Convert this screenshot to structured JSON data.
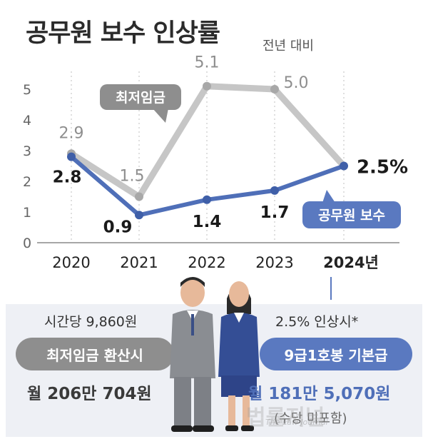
{
  "title": "공무원 보수 인상률",
  "subtitle": "전년 대비",
  "chart_data": {
    "type": "line",
    "x": [
      "2020",
      "2021",
      "2022",
      "2023",
      "2024"
    ],
    "x_tick_labels": [
      "2020",
      "2021",
      "2022",
      "2023",
      "2024년"
    ],
    "ylim": [
      0,
      5
    ],
    "y_ticks": [
      "0",
      "1",
      "2",
      "3",
      "4",
      "5"
    ],
    "series": [
      {
        "name": "최저임금",
        "values": [
          2.9,
          1.5,
          5.1,
          5.0,
          null
        ],
        "labels": [
          "2.9",
          "1.5",
          "5.1",
          "5.0",
          ""
        ],
        "color": "#c6c6c6",
        "label_color": "#8e8e8e"
      },
      {
        "name": "공무원 보수",
        "values": [
          2.8,
          0.9,
          1.4,
          1.7,
          2.5
        ],
        "labels": [
          "2.8",
          "0.9",
          "1.4",
          "1.7",
          "2.5%"
        ],
        "color": "#4f6fb8",
        "label_color": "#1a1a1a"
      }
    ],
    "grid": "vertical-dotted"
  },
  "panel": {
    "left_top": "시간당 9,860원",
    "left_pill": "최저임금 환산시",
    "left_prefix": "월",
    "left_value": "206만 704원",
    "right_top": "2.5% 인상시*",
    "right_pill": "9급1호봉 기본급",
    "right_prefix": "월",
    "right_value": "181만 5,070원",
    "right_note": "(수당 미포함)"
  },
  "watermark": {
    "text": "법률저널",
    "sub": "The Law Journal"
  },
  "colors": {
    "gray_series": "#c6c6c6",
    "blue_series": "#4f6fb8",
    "gray_pill": "#8e8e8e",
    "blue_pill": "#5a79c0",
    "panel_bg": "#eef0f5"
  }
}
